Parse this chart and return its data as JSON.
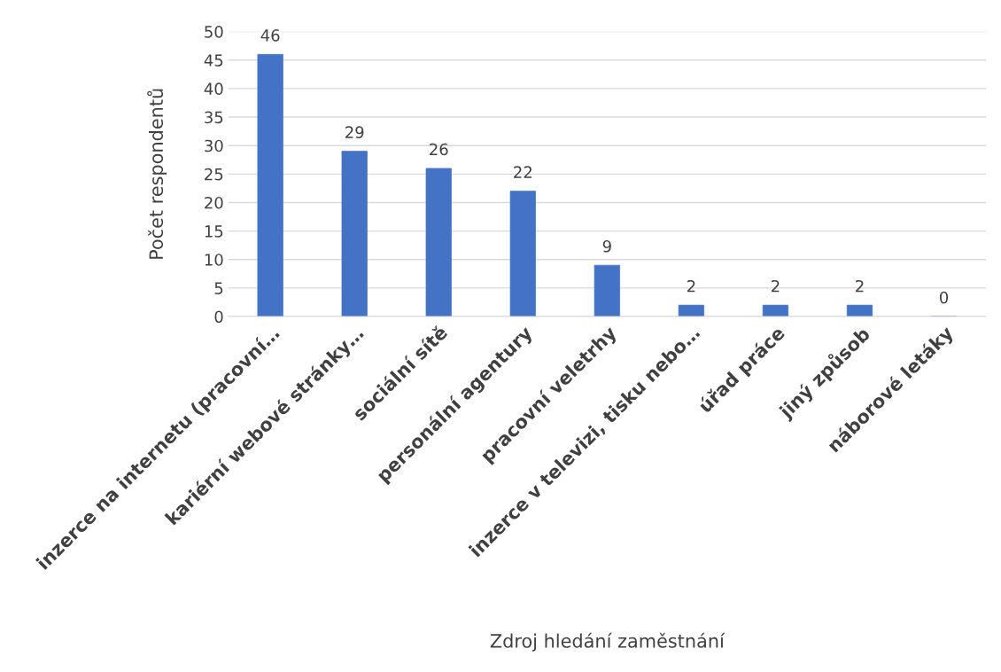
{
  "chart_data": {
    "type": "bar",
    "categories": [
      "inzerce na internetu (pracovní…",
      "kariérní webové stránky…",
      "sociální sítě",
      "personální agentury",
      "pracovní veletrhy",
      "inzerce v televizi, tisku nebo…",
      "úřad práce",
      "jiný způsob",
      "náborové letáky"
    ],
    "values": [
      46,
      29,
      26,
      22,
      9,
      2,
      2,
      2,
      0
    ],
    "color": "#4472c4",
    "xlabel": "Zdroj hledání zaměstnání",
    "ylabel": "Počet respondentů",
    "ylim": [
      0,
      50
    ],
    "yticks": [
      0,
      5,
      10,
      15,
      20,
      25,
      30,
      35,
      40,
      45,
      50
    ],
    "grid": "y",
    "data_labels": true,
    "legend": false
  }
}
